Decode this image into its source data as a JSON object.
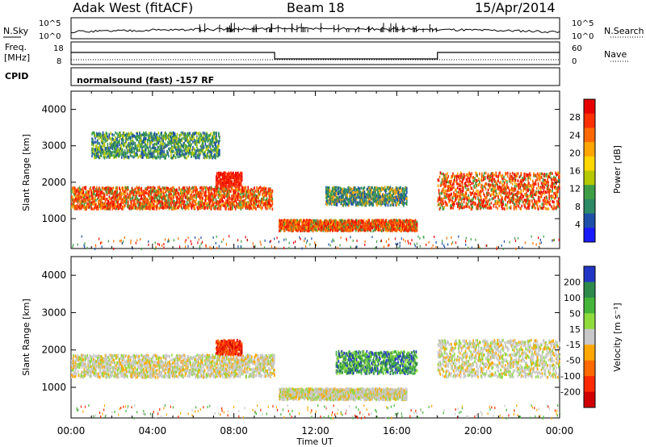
{
  "header": {
    "radar": "Adak West (fitACF)",
    "beam": "Beam 18",
    "date": "15/Apr/2014"
  },
  "top_panels": {
    "sky_label": "N.Sky",
    "search_label": "N.Search",
    "sky_ticks": [
      "10^5",
      "10^0"
    ],
    "search_ticks": [
      "10^5",
      "10^0"
    ],
    "freq_label_1": "Freq.",
    "freq_label_2": "[MHz]",
    "freq_ticks": [
      "18",
      "8"
    ],
    "nave_label": "Nave",
    "nave_ticks": [
      "60",
      "0"
    ],
    "cpid_label": "CPID",
    "cpid_text": "normalsound (fast) -157 RF"
  },
  "chart_data": [
    {
      "type": "heatmap",
      "name": "power",
      "ylabel": "Slant Range [km]",
      "yticks": [
        "4000",
        "3000",
        "2000",
        "1000"
      ],
      "ylim": [
        180,
        4500
      ],
      "colorbar_label": "Power [dB]",
      "colorbar_ticks": [
        "28",
        "24",
        "20",
        "16",
        "12",
        "8",
        "4"
      ],
      "colorbar_colors": [
        "#e60000",
        "#ff3000",
        "#ff6a00",
        "#ffa500",
        "#ffd700",
        "#b5c800",
        "#3e9e46",
        "#2d8a66",
        "#1d4fa8",
        "#1a1aff"
      ],
      "features": [
        {
          "t0": 0,
          "t1": 9.9,
          "r0": 1300,
          "r1": 1900,
          "level": "strong"
        },
        {
          "t0": 1,
          "t1": 7.3,
          "r0": 2700,
          "r1": 3400,
          "level": "weak"
        },
        {
          "t0": 7.1,
          "t1": 8.4,
          "r0": 1900,
          "r1": 2300,
          "level": "peak"
        },
        {
          "t0": 10.2,
          "t1": 17,
          "r0": 700,
          "r1": 1000,
          "level": "strong"
        },
        {
          "t0": 12.5,
          "t1": 16.5,
          "r0": 1400,
          "r1": 1900,
          "level": "medium"
        },
        {
          "t0": 18,
          "t1": 24,
          "r0": 1300,
          "r1": 2300,
          "level": "strong"
        }
      ]
    },
    {
      "type": "heatmap",
      "name": "velocity",
      "ylabel": "Slant Range [km]",
      "yticks": [
        "4000",
        "3000",
        "2000",
        "1000"
      ],
      "ylim": [
        180,
        4500
      ],
      "colorbar_label": "Velocity [m s⁻¹]",
      "colorbar_ticks": [
        "200",
        "100",
        "50",
        "15",
        "-15",
        "-50",
        "-100",
        "-200"
      ],
      "colorbar_colors": [
        "#2236c6",
        "#2d8a4a",
        "#45b53a",
        "#8fdb3c",
        "#c8c8c8",
        "#ffa800",
        "#ff6a00",
        "#ff2a00",
        "#d00000"
      ],
      "features": [
        {
          "t0": 0,
          "t1": 10,
          "r0": 1300,
          "r1": 1900,
          "v": "near-zero"
        },
        {
          "t0": 7.1,
          "t1": 8.4,
          "r0": 1900,
          "r1": 2300,
          "v": "negative"
        },
        {
          "t0": 13,
          "t1": 17,
          "r0": 1400,
          "r1": 2000,
          "v": "positive"
        },
        {
          "t0": 10.2,
          "t1": 16.5,
          "r0": 700,
          "r1": 1000,
          "v": "near-zero"
        },
        {
          "t0": 18,
          "t1": 24,
          "r0": 1300,
          "r1": 2300,
          "v": "near-zero"
        }
      ]
    }
  ],
  "xaxis": {
    "label": "Time UT",
    "ticks": [
      "00:00",
      "04:00",
      "08:00",
      "12:00",
      "16:00",
      "20:00",
      "00:00"
    ],
    "xlim": [
      0,
      24
    ]
  }
}
